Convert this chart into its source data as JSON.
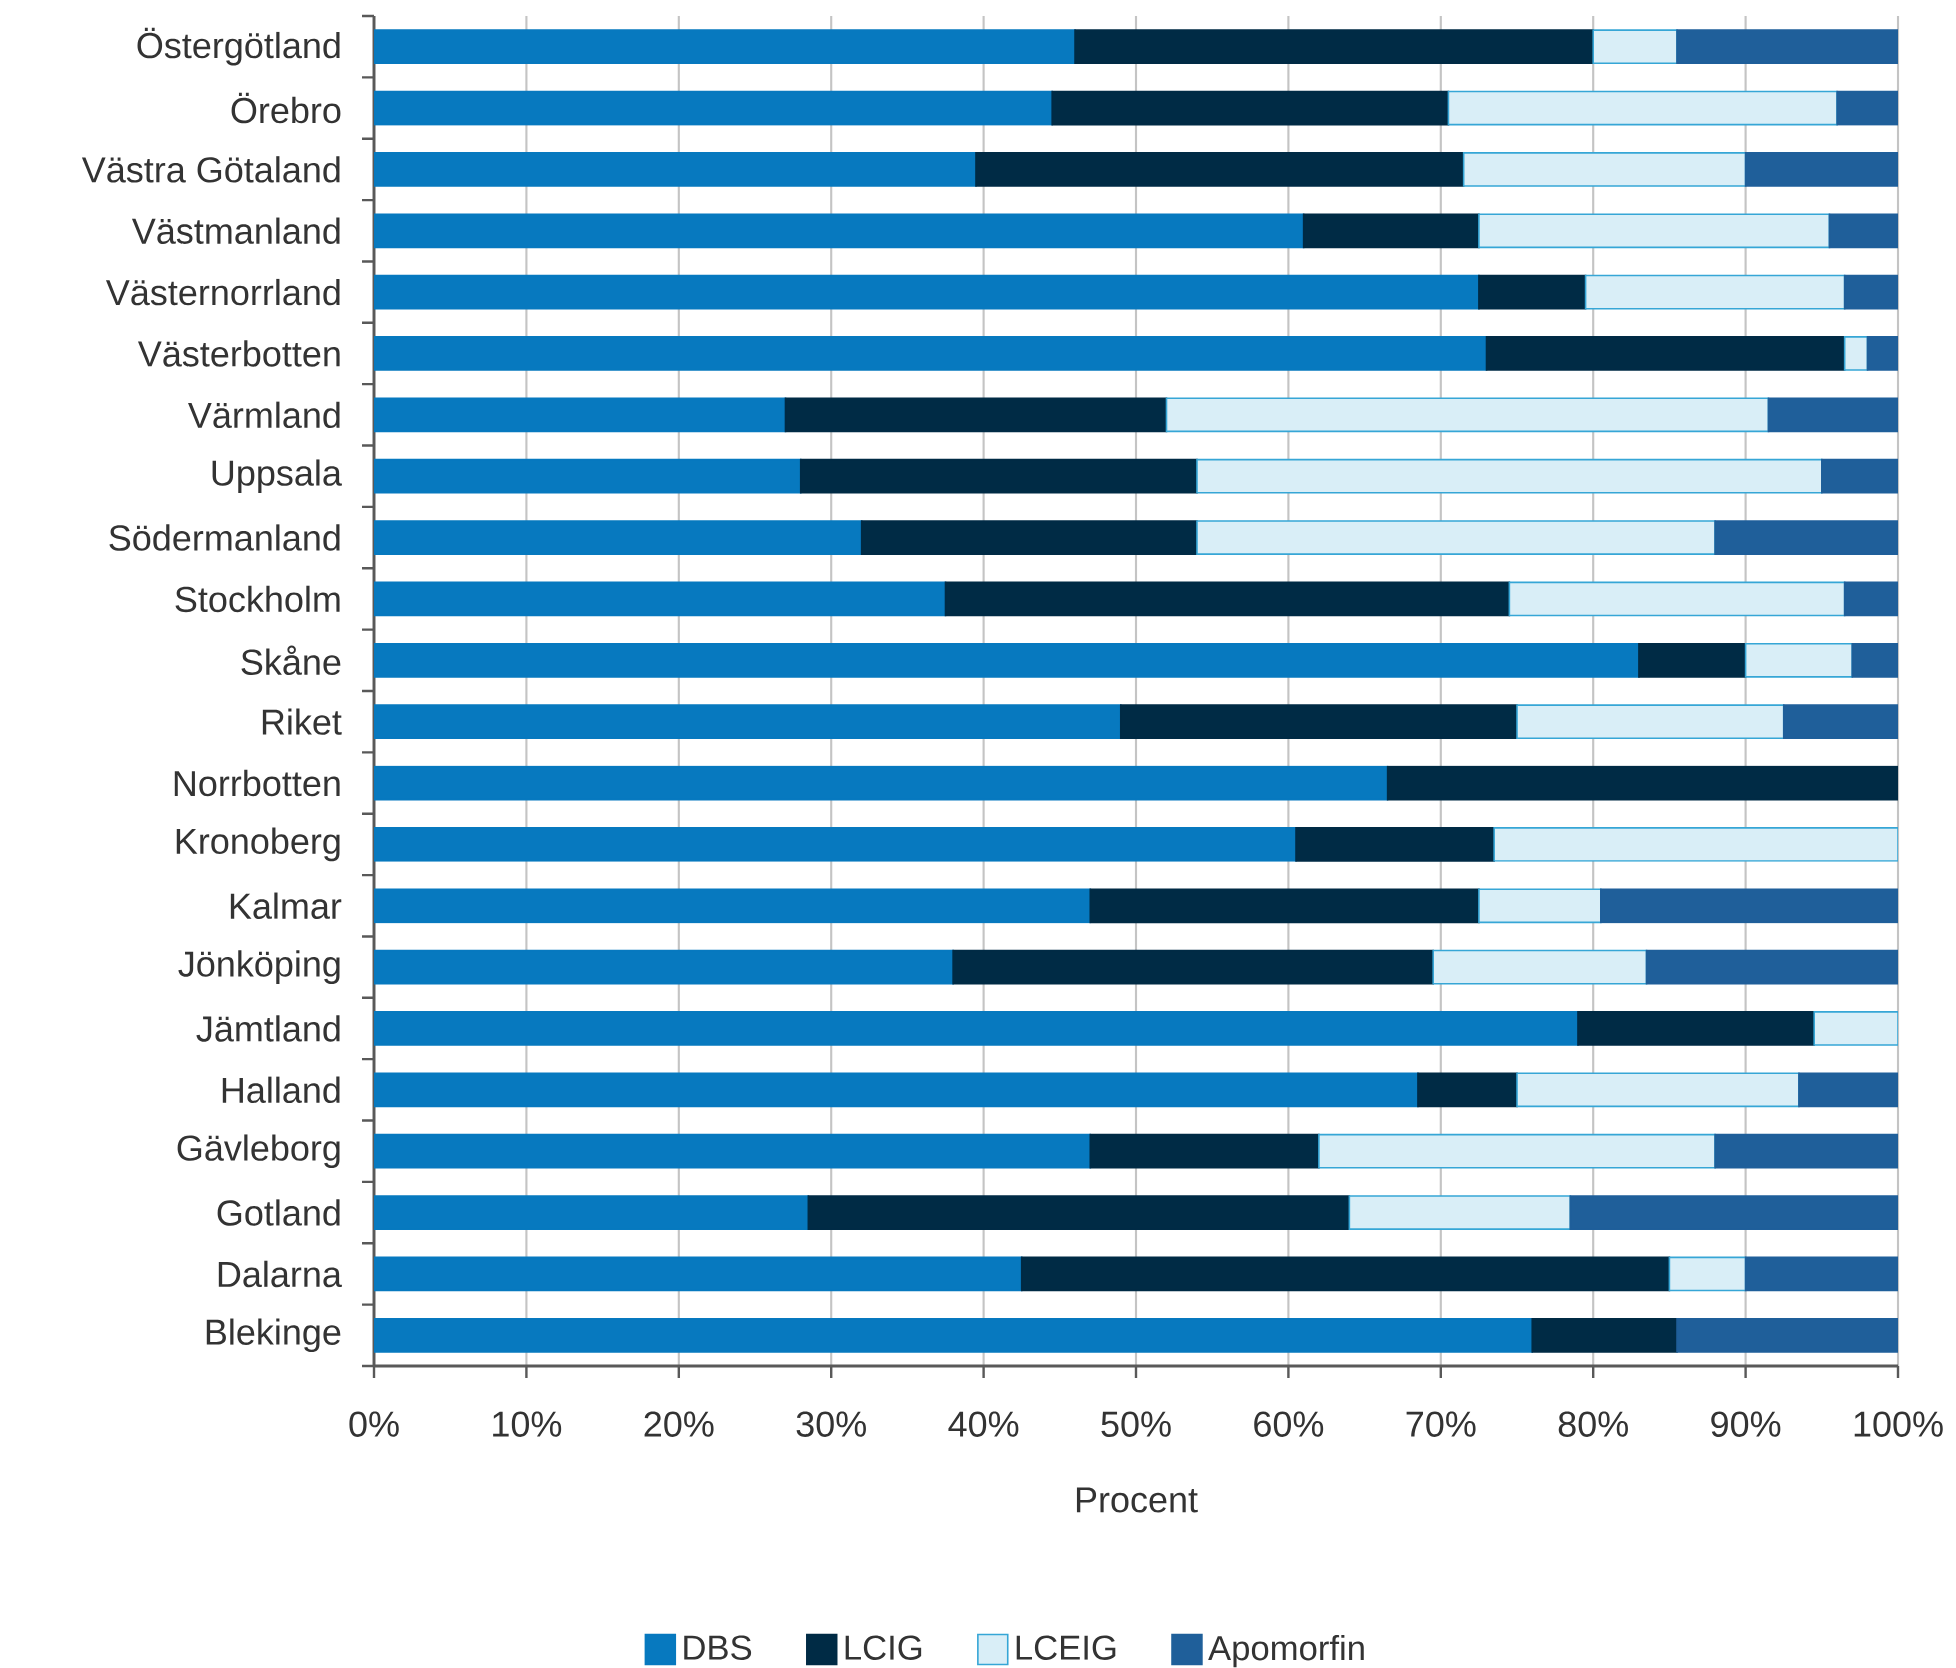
{
  "chart_data": {
    "type": "bar",
    "orientation": "horizontal",
    "stacked": true,
    "xlabel": "Procent",
    "categories": [
      "Östergötland",
      "Örebro",
      "Västra Götaland",
      "Västmanland",
      "Västernorrland",
      "Västerbotten",
      "Värmland",
      "Uppsala",
      "Södermanland",
      "Stockholm",
      "Skåne",
      "Riket",
      "Norrbotten",
      "Kronoberg",
      "Kalmar",
      "Jönköping",
      "Jämtland",
      "Halland",
      "Gävleborg",
      "Gotland",
      "Dalarna",
      "Blekinge"
    ],
    "series": [
      {
        "name": "DBS",
        "color": "#0779bf",
        "values": [
          46,
          44.5,
          39.5,
          61,
          72.5,
          73,
          27,
          28,
          32,
          37.5,
          83,
          49,
          66.5,
          60.5,
          47,
          38,
          79,
          68.5,
          47,
          28.5,
          42.5,
          76
        ]
      },
      {
        "name": "LCIG",
        "color": "#002b45",
        "values": [
          34,
          26,
          32,
          11.5,
          7,
          23.5,
          25,
          26,
          22,
          37,
          7,
          26,
          33.5,
          13,
          25.5,
          31.5,
          15.5,
          6.5,
          15,
          35.5,
          42.5,
          9.5
        ]
      },
      {
        "name": "LCEIG",
        "color": "#d9eef7",
        "values": [
          5.5,
          25.5,
          18.5,
          23,
          17,
          1.5,
          39.5,
          41,
          34,
          22,
          7,
          17.5,
          0,
          26.5,
          8,
          14,
          5.5,
          18.5,
          26,
          14.5,
          5,
          0
        ]
      },
      {
        "name": "Apomorfin",
        "color": "#1f5f9a",
        "values": [
          14.5,
          4,
          10,
          4.5,
          3.5,
          2,
          8.5,
          5,
          12,
          3.5,
          3,
          7.5,
          0,
          0,
          19.5,
          16.5,
          0,
          6.5,
          12,
          21.5,
          10,
          14.5
        ]
      }
    ],
    "xlim": [
      0,
      100
    ],
    "xticks": [
      {
        "value": 0,
        "label": "0%"
      },
      {
        "value": 10,
        "label": "10%"
      },
      {
        "value": 20,
        "label": "20%"
      },
      {
        "value": 30,
        "label": "30%"
      },
      {
        "value": 40,
        "label": "40%"
      },
      {
        "value": 50,
        "label": "50%"
      },
      {
        "value": 60,
        "label": "60%"
      },
      {
        "value": 70,
        "label": "70%"
      },
      {
        "value": 80,
        "label": "80%"
      },
      {
        "value": 90,
        "label": "90%"
      },
      {
        "value": 100,
        "label": "100%"
      }
    ],
    "grid": "x",
    "legend": "bottom"
  }
}
